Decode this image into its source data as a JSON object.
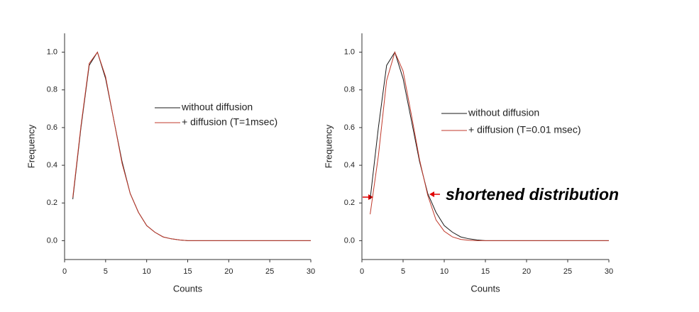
{
  "chart_data": [
    {
      "type": "line",
      "xlabel": "Counts",
      "ylabel": "Frequency",
      "x": [
        1,
        2,
        3,
        4,
        5,
        6,
        7,
        8,
        9,
        10,
        11,
        12,
        13,
        14,
        15,
        16,
        17,
        18,
        19,
        20,
        21,
        22,
        23,
        24,
        25,
        26,
        27,
        28,
        29,
        30
      ],
      "series": [
        {
          "name": "without diffusion",
          "color": "#1a1a1a",
          "values": [
            0.22,
            0.6,
            0.93,
            1.0,
            0.86,
            0.64,
            0.42,
            0.25,
            0.15,
            0.08,
            0.045,
            0.02,
            0.01,
            0.004,
            0,
            0,
            0,
            0,
            0,
            0,
            0,
            0,
            0,
            0,
            0,
            0,
            0,
            0,
            0,
            0
          ]
        },
        {
          "name": "+ diffusion (T=1msec)",
          "color": "#c0392b",
          "values": [
            0.23,
            0.61,
            0.94,
            1.0,
            0.87,
            0.64,
            0.41,
            0.25,
            0.15,
            0.08,
            0.045,
            0.02,
            0.01,
            0.004,
            0,
            0,
            0,
            0,
            0,
            0,
            0,
            0,
            0,
            0,
            0,
            0,
            0,
            0,
            0,
            0
          ]
        }
      ],
      "xlim": [
        0,
        30
      ],
      "xticks": [
        0,
        5,
        10,
        15,
        20,
        25,
        30
      ],
      "ylim": [
        -0.1,
        1.1
      ],
      "yticks": [
        {
          "value": 0,
          "label": "0.0"
        },
        0.2,
        0.4,
        0.6,
        0.8,
        {
          "value": 1,
          "label": "1.0"
        }
      ]
    },
    {
      "type": "line",
      "xlabel": "Counts",
      "ylabel": "Frequency",
      "annotation": "shortened distribution",
      "x": [
        1,
        2,
        3,
        4,
        5,
        6,
        7,
        8,
        9,
        10,
        11,
        12,
        13,
        14,
        15,
        16,
        17,
        18,
        19,
        20,
        21,
        22,
        23,
        24,
        25,
        26,
        27,
        28,
        29,
        30
      ],
      "series": [
        {
          "name": "without diffusion",
          "color": "#1a1a1a",
          "values": [
            0.22,
            0.6,
            0.93,
            1.0,
            0.86,
            0.64,
            0.42,
            0.25,
            0.15,
            0.08,
            0.045,
            0.02,
            0.01,
            0.004,
            0,
            0,
            0,
            0,
            0,
            0,
            0,
            0,
            0,
            0,
            0,
            0,
            0,
            0,
            0,
            0
          ]
        },
        {
          "name": "+ diffusion (T=0.01 msec)",
          "color": "#c0392b",
          "values": [
            0.14,
            0.45,
            0.85,
            1.0,
            0.9,
            0.67,
            0.43,
            0.24,
            0.11,
            0.05,
            0.02,
            0.007,
            0.002,
            0,
            0,
            0,
            0,
            0,
            0,
            0,
            0,
            0,
            0,
            0,
            0,
            0,
            0,
            0,
            0,
            0
          ]
        }
      ],
      "xlim": [
        0,
        30
      ],
      "xticks": [
        0,
        5,
        10,
        15,
        20,
        25,
        30
      ],
      "ylim": [
        -0.1,
        1.1
      ],
      "yticks": [
        {
          "value": 0,
          "label": "0.0"
        },
        0.2,
        0.4,
        0.6,
        0.8,
        {
          "value": 1,
          "label": "1.0"
        }
      ]
    }
  ]
}
